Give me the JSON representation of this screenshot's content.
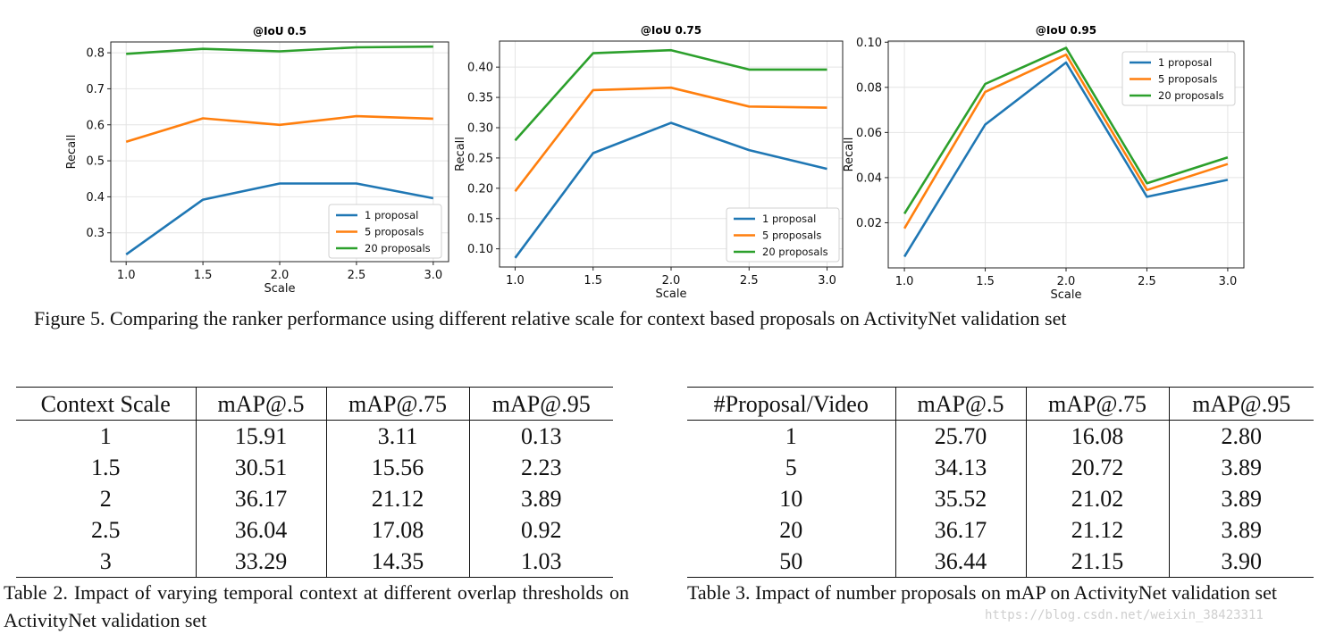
{
  "chart_data": [
    {
      "type": "line",
      "title": "@IoU 0.5",
      "xlabel": "Scale",
      "ylabel": "Recall",
      "x": [
        1.0,
        1.5,
        2.0,
        2.5,
        3.0
      ],
      "xticks": [
        "1.0",
        "1.5",
        "2.0",
        "2.5",
        "3.0"
      ],
      "yticks": [
        "0.3",
        "0.4",
        "0.5",
        "0.6",
        "0.7",
        "0.8"
      ],
      "ylim": [
        0.22,
        0.83
      ],
      "grid": true,
      "legend_position": "lower-right",
      "series": [
        {
          "name": "1 proposal",
          "color": "#1f77b4",
          "values": [
            0.24,
            0.392,
            0.437,
            0.437,
            0.396
          ]
        },
        {
          "name": "5 proposals",
          "color": "#ff7f0e",
          "values": [
            0.553,
            0.618,
            0.6,
            0.624,
            0.617
          ]
        },
        {
          "name": "20 proposals",
          "color": "#2ca02c",
          "values": [
            0.797,
            0.811,
            0.804,
            0.815,
            0.817
          ]
        }
      ]
    },
    {
      "type": "line",
      "title": "@IoU 0.75",
      "xlabel": "Scale",
      "ylabel": "Recall",
      "x": [
        1.0,
        1.5,
        2.0,
        2.5,
        3.0
      ],
      "xticks": [
        "1.0",
        "1.5",
        "2.0",
        "2.5",
        "3.0"
      ],
      "yticks": [
        "0.10",
        "0.15",
        "0.20",
        "0.25",
        "0.30",
        "0.35",
        "0.40"
      ],
      "ylim": [
        0.07,
        0.443
      ],
      "grid": true,
      "legend_position": "lower-right",
      "series": [
        {
          "name": "1 proposal",
          "color": "#1f77b4",
          "values": [
            0.085,
            0.258,
            0.308,
            0.263,
            0.232
          ]
        },
        {
          "name": "5 proposals",
          "color": "#ff7f0e",
          "values": [
            0.195,
            0.362,
            0.366,
            0.335,
            0.333
          ]
        },
        {
          "name": "20 proposals",
          "color": "#2ca02c",
          "values": [
            0.279,
            0.423,
            0.428,
            0.396,
            0.396
          ]
        }
      ]
    },
    {
      "type": "line",
      "title": "@IoU 0.95",
      "xlabel": "Scale",
      "ylabel": "Recall",
      "x": [
        1.0,
        1.5,
        2.0,
        2.5,
        3.0
      ],
      "xticks": [
        "1.0",
        "1.5",
        "2.0",
        "2.5",
        "3.0"
      ],
      "yticks": [
        "0.02",
        "0.04",
        "0.06",
        "0.08",
        "0.10"
      ],
      "ylim": [
        0.0,
        0.1005
      ],
      "grid": true,
      "legend_position": "top-right",
      "series": [
        {
          "name": "1 proposal",
          "color": "#1f77b4",
          "values": [
            0.005,
            0.0635,
            0.091,
            0.0315,
            0.039
          ]
        },
        {
          "name": "5 proposals",
          "color": "#ff7f0e",
          "values": [
            0.0175,
            0.078,
            0.0945,
            0.0345,
            0.046
          ]
        },
        {
          "name": "20 proposals",
          "color": "#2ca02c",
          "values": [
            0.024,
            0.0815,
            0.0975,
            0.0375,
            0.049
          ]
        }
      ]
    }
  ],
  "figure_caption": "Figure 5. Comparing the ranker performance using different relative scale for context based proposals on ActivityNet validation set",
  "table2": {
    "headers": [
      "Context Scale",
      "mAP@.5",
      "mAP@.75",
      "mAP@.95"
    ],
    "rows": [
      [
        "1",
        "15.91",
        "3.11",
        "0.13"
      ],
      [
        "1.5",
        "30.51",
        "15.56",
        "2.23"
      ],
      [
        "2",
        "36.17",
        "21.12",
        "3.89"
      ],
      [
        "2.5",
        "36.04",
        "17.08",
        "0.92"
      ],
      [
        "3",
        "33.29",
        "14.35",
        "1.03"
      ]
    ],
    "caption": "Table 2. Impact of varying temporal context at different overlap thresholds on ActivityNet validation set"
  },
  "table3": {
    "headers": [
      "#Proposal/Video",
      "mAP@.5",
      "mAP@.75",
      "mAP@.95"
    ],
    "rows": [
      [
        "1",
        "25.70",
        "16.08",
        "2.80"
      ],
      [
        "5",
        "34.13",
        "20.72",
        "3.89"
      ],
      [
        "10",
        "35.52",
        "21.02",
        "3.89"
      ],
      [
        "20",
        "36.17",
        "21.12",
        "3.89"
      ],
      [
        "50",
        "36.44",
        "21.15",
        "3.90"
      ]
    ],
    "caption": "Table 3. Impact of number proposals on mAP on ActivityNet validation set"
  },
  "watermark": "https://blog.csdn.net/weixin_38423311"
}
